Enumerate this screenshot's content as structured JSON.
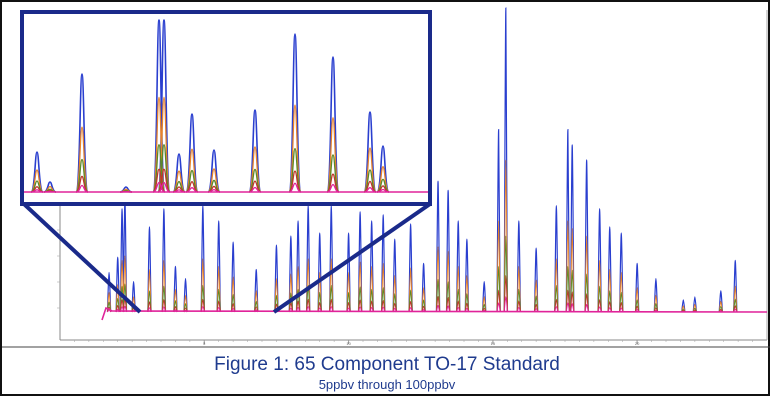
{
  "caption": {
    "title": "Figure 1: 65 Component TO-17 Standard",
    "subtitle": "5ppbv through 100ppbv"
  },
  "chart_data": {
    "type": "line",
    "title": "Figure 1: 65 Component TO-17 Standard",
    "subtitle": "5ppbv through 100ppbv",
    "x_ticks": [
      "5",
      "10",
      "15",
      "20"
    ],
    "xlim": [
      0,
      24.5
    ],
    "ylim": [
      0,
      100
    ],
    "grid": false,
    "legend": "none",
    "series": [
      {
        "color": "#2a3fcf",
        "scale": 1.0
      },
      {
        "color": "#e8832a",
        "scale": 0.5
      },
      {
        "color": "#5a8a2a",
        "scale": 0.25
      },
      {
        "color": "#c0362c",
        "scale": 0.12
      },
      {
        "color": "#e0239a",
        "scale": 0.05
      }
    ],
    "peaks": [
      {
        "t": 1.7,
        "h": 13
      },
      {
        "t": 2.0,
        "h": 18
      },
      {
        "t": 2.15,
        "h": 34
      },
      {
        "t": 2.25,
        "h": 37
      },
      {
        "t": 2.55,
        "h": 10
      },
      {
        "t": 3.1,
        "h": 28
      },
      {
        "t": 3.6,
        "h": 34
      },
      {
        "t": 4.0,
        "h": 15
      },
      {
        "t": 4.35,
        "h": 11
      },
      {
        "t": 4.95,
        "h": 35
      },
      {
        "t": 5.5,
        "h": 30
      },
      {
        "t": 6.0,
        "h": 23
      },
      {
        "t": 6.8,
        "h": 14
      },
      {
        "t": 7.5,
        "h": 22
      },
      {
        "t": 8.0,
        "h": 25
      },
      {
        "t": 8.25,
        "h": 30
      },
      {
        "t": 8.6,
        "h": 35
      },
      {
        "t": 9.0,
        "h": 26
      },
      {
        "t": 9.4,
        "h": 35
      },
      {
        "t": 10.0,
        "h": 26
      },
      {
        "t": 10.4,
        "h": 33
      },
      {
        "t": 10.8,
        "h": 30
      },
      {
        "t": 11.2,
        "h": 32
      },
      {
        "t": 11.6,
        "h": 24
      },
      {
        "t": 12.15,
        "h": 29
      },
      {
        "t": 12.6,
        "h": 16
      },
      {
        "t": 13.1,
        "h": 43
      },
      {
        "t": 13.45,
        "h": 40
      },
      {
        "t": 13.8,
        "h": 30
      },
      {
        "t": 14.1,
        "h": 24
      },
      {
        "t": 14.7,
        "h": 10
      },
      {
        "t": 15.2,
        "h": 60
      },
      {
        "t": 15.45,
        "h": 100
      },
      {
        "t": 15.9,
        "h": 30
      },
      {
        "t": 16.5,
        "h": 21
      },
      {
        "t": 17.2,
        "h": 35
      },
      {
        "t": 17.6,
        "h": 60
      },
      {
        "t": 17.75,
        "h": 55
      },
      {
        "t": 18.25,
        "h": 50
      },
      {
        "t": 18.7,
        "h": 34
      },
      {
        "t": 19.05,
        "h": 28
      },
      {
        "t": 19.45,
        "h": 26
      },
      {
        "t": 20.0,
        "h": 16
      },
      {
        "t": 20.65,
        "h": 11
      },
      {
        "t": 21.6,
        "h": 4
      },
      {
        "t": 22.0,
        "h": 5
      },
      {
        "t": 22.9,
        "h": 7
      },
      {
        "t": 23.4,
        "h": 17
      }
    ]
  }
}
